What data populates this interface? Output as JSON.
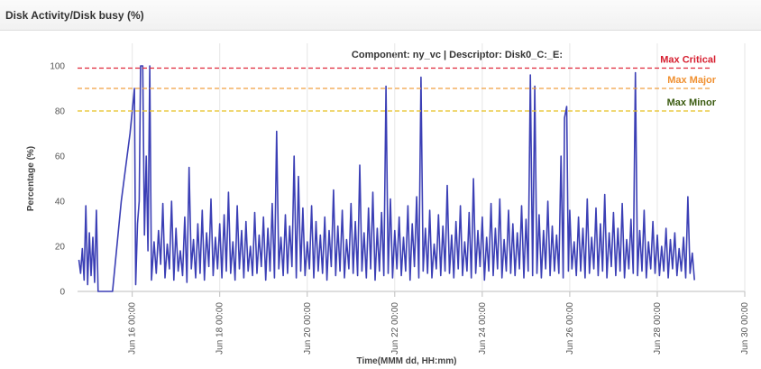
{
  "panel": {
    "title": "Disk Activity/Disk busy (%)"
  },
  "chart_data": {
    "type": "line",
    "title": "Component: ny_vc | Descriptor: Disk0_C:_E:",
    "xlabel": "Time(MMM dd, HH:mm)",
    "ylabel": "Percentage (%)",
    "ylim": [
      0,
      100
    ],
    "yticks": [
      0,
      20,
      40,
      60,
      80,
      100
    ],
    "xlim": [
      14.75,
      30.0
    ],
    "xticks": [
      {
        "value": 16,
        "label": "Jun 16 00:00"
      },
      {
        "value": 18,
        "label": "Jun 18 00:00"
      },
      {
        "value": 20,
        "label": "Jun 20 00:00"
      },
      {
        "value": 22,
        "label": "Jun 22 00:00"
      },
      {
        "value": 24,
        "label": "Jun 24 00:00"
      },
      {
        "value": 26,
        "label": "Jun 26 00:00"
      },
      {
        "value": 28,
        "label": "Jun 28 00:00"
      },
      {
        "value": 30,
        "label": "Jun 30 00:00"
      }
    ],
    "grid": true,
    "colors": {
      "series": "#3b3fb5",
      "grid": "#e6e6e6"
    },
    "thresholds": [
      {
        "name": "Max Critical",
        "value": 99,
        "color": "#e0263a",
        "label_color": "#d61d2e"
      },
      {
        "name": "Max Major",
        "value": 90,
        "color": "#f0a040",
        "label_color": "#f09030"
      },
      {
        "name": "Max Minor",
        "value": 80,
        "color": "#e8c020",
        "label_color": "#3a5a10"
      }
    ],
    "series": [
      {
        "color": "#3b3fb5",
        "points": [
          [
            14.78,
            14
          ],
          [
            14.82,
            8
          ],
          [
            14.86,
            19
          ],
          [
            14.9,
            5
          ],
          [
            14.94,
            38
          ],
          [
            14.98,
            3
          ],
          [
            15.02,
            26
          ],
          [
            15.06,
            7
          ],
          [
            15.1,
            24
          ],
          [
            15.14,
            4
          ],
          [
            15.18,
            36
          ],
          [
            15.22,
            0
          ],
          [
            15.55,
            0
          ],
          [
            15.75,
            40
          ],
          [
            15.95,
            70
          ],
          [
            16.05,
            90
          ],
          [
            16.08,
            3
          ],
          [
            16.12,
            30
          ],
          [
            16.16,
            40
          ],
          [
            16.19,
            100
          ],
          [
            16.24,
            100
          ],
          [
            16.28,
            25
          ],
          [
            16.32,
            60
          ],
          [
            16.36,
            18
          ],
          [
            16.4,
            100
          ],
          [
            16.44,
            5
          ],
          [
            16.5,
            22
          ],
          [
            16.55,
            8
          ],
          [
            16.6,
            27
          ],
          [
            16.65,
            12
          ],
          [
            16.7,
            39
          ],
          [
            16.75,
            6
          ],
          [
            16.8,
            21
          ],
          [
            16.85,
            10
          ],
          [
            16.9,
            40
          ],
          [
            16.95,
            5
          ],
          [
            17.0,
            28
          ],
          [
            17.05,
            9
          ],
          [
            17.1,
            18
          ],
          [
            17.15,
            7
          ],
          [
            17.2,
            33
          ],
          [
            17.25,
            4
          ],
          [
            17.3,
            55
          ],
          [
            17.35,
            10
          ],
          [
            17.4,
            23
          ],
          [
            17.45,
            6
          ],
          [
            17.5,
            30
          ],
          [
            17.55,
            8
          ],
          [
            17.6,
            36
          ],
          [
            17.65,
            5
          ],
          [
            17.7,
            26
          ],
          [
            17.75,
            11
          ],
          [
            17.8,
            41
          ],
          [
            17.85,
            7
          ],
          [
            17.9,
            24
          ],
          [
            17.95,
            10
          ],
          [
            18.0,
            30
          ],
          [
            18.05,
            6
          ],
          [
            18.1,
            34
          ],
          [
            18.15,
            9
          ],
          [
            18.2,
            44
          ],
          [
            18.25,
            8
          ],
          [
            18.3,
            22
          ],
          [
            18.35,
            5
          ],
          [
            18.4,
            38
          ],
          [
            18.45,
            10
          ],
          [
            18.5,
            27
          ],
          [
            18.55,
            6
          ],
          [
            18.6,
            31
          ],
          [
            18.65,
            9
          ],
          [
            18.7,
            20
          ],
          [
            18.75,
            7
          ],
          [
            18.8,
            35
          ],
          [
            18.85,
            8
          ],
          [
            18.9,
            25
          ],
          [
            18.95,
            11
          ],
          [
            19.0,
            33
          ],
          [
            19.05,
            5
          ],
          [
            19.1,
            28
          ],
          [
            19.15,
            9
          ],
          [
            19.2,
            39
          ],
          [
            19.25,
            6
          ],
          [
            19.3,
            71
          ],
          [
            19.35,
            10
          ],
          [
            19.4,
            24
          ],
          [
            19.45,
            7
          ],
          [
            19.5,
            34
          ],
          [
            19.55,
            8
          ],
          [
            19.6,
            29
          ],
          [
            19.65,
            11
          ],
          [
            19.7,
            60
          ],
          [
            19.75,
            6
          ],
          [
            19.8,
            51
          ],
          [
            19.85,
            9
          ],
          [
            19.9,
            37
          ],
          [
            19.95,
            7
          ],
          [
            20.0,
            22
          ],
          [
            20.05,
            10
          ],
          [
            20.1,
            38
          ],
          [
            20.15,
            6
          ],
          [
            20.2,
            31
          ],
          [
            20.25,
            9
          ],
          [
            20.3,
            25
          ],
          [
            20.35,
            8
          ],
          [
            20.4,
            33
          ],
          [
            20.45,
            5
          ],
          [
            20.5,
            27
          ],
          [
            20.55,
            11
          ],
          [
            20.6,
            45
          ],
          [
            20.65,
            7
          ],
          [
            20.7,
            29
          ],
          [
            20.75,
            9
          ],
          [
            20.8,
            36
          ],
          [
            20.85,
            6
          ],
          [
            20.9,
            23
          ],
          [
            20.95,
            10
          ],
          [
            21.0,
            39
          ],
          [
            21.05,
            8
          ],
          [
            21.1,
            31
          ],
          [
            21.15,
            7
          ],
          [
            21.2,
            56
          ],
          [
            21.25,
            9
          ],
          [
            21.3,
            26
          ],
          [
            21.35,
            6
          ],
          [
            21.4,
            37
          ],
          [
            21.45,
            10
          ],
          [
            21.5,
            44
          ],
          [
            21.55,
            5
          ],
          [
            21.6,
            28
          ],
          [
            21.65,
            9
          ],
          [
            21.7,
            35
          ],
          [
            21.75,
            7
          ],
          [
            21.8,
            91
          ],
          [
            21.85,
            8
          ],
          [
            21.9,
            41
          ],
          [
            21.95,
            6
          ],
          [
            22.0,
            27
          ],
          [
            22.05,
            10
          ],
          [
            22.1,
            33
          ],
          [
            22.15,
            7
          ],
          [
            22.2,
            24
          ],
          [
            22.25,
            9
          ],
          [
            22.3,
            38
          ],
          [
            22.35,
            5
          ],
          [
            22.4,
            30
          ],
          [
            22.45,
            11
          ],
          [
            22.5,
            42
          ],
          [
            22.55,
            6
          ],
          [
            22.6,
            95
          ],
          [
            22.65,
            9
          ],
          [
            22.7,
            28
          ],
          [
            22.75,
            8
          ],
          [
            22.8,
            36
          ],
          [
            22.85,
            6
          ],
          [
            22.9,
            21
          ],
          [
            22.95,
            10
          ],
          [
            23.0,
            34
          ],
          [
            23.05,
            7
          ],
          [
            23.1,
            29
          ],
          [
            23.15,
            9
          ],
          [
            23.2,
            47
          ],
          [
            23.25,
            8
          ],
          [
            23.3,
            25
          ],
          [
            23.35,
            6
          ],
          [
            23.4,
            31
          ],
          [
            23.45,
            10
          ],
          [
            23.5,
            38
          ],
          [
            23.55,
            7
          ],
          [
            23.6,
            22
          ],
          [
            23.65,
            9
          ],
          [
            23.7,
            35
          ],
          [
            23.75,
            6
          ],
          [
            23.8,
            50
          ],
          [
            23.85,
            8
          ],
          [
            23.9,
            27
          ],
          [
            23.95,
            11
          ],
          [
            24.0,
            33
          ],
          [
            24.05,
            5
          ],
          [
            24.1,
            24
          ],
          [
            24.15,
            9
          ],
          [
            24.2,
            39
          ],
          [
            24.25,
            7
          ],
          [
            24.3,
            28
          ],
          [
            24.35,
            10
          ],
          [
            24.4,
            41
          ],
          [
            24.45,
            6
          ],
          [
            24.5,
            23
          ],
          [
            24.55,
            9
          ],
          [
            24.6,
            36
          ],
          [
            24.65,
            8
          ],
          [
            24.7,
            30
          ],
          [
            24.75,
            7
          ],
          [
            24.8,
            26
          ],
          [
            24.85,
            10
          ],
          [
            24.9,
            38
          ],
          [
            24.95,
            6
          ],
          [
            25.0,
            32
          ],
          [
            25.05,
            9
          ],
          [
            25.1,
            96
          ],
          [
            25.15,
            7
          ],
          [
            25.2,
            91
          ],
          [
            25.25,
            8
          ],
          [
            25.3,
            34
          ],
          [
            25.35,
            6
          ],
          [
            25.4,
            27
          ],
          [
            25.45,
            10
          ],
          [
            25.5,
            40
          ],
          [
            25.55,
            7
          ],
          [
            25.6,
            29
          ],
          [
            25.65,
            9
          ],
          [
            25.7,
            25
          ],
          [
            25.75,
            8
          ],
          [
            25.8,
            60
          ],
          [
            25.85,
            6
          ],
          [
            25.88,
            77
          ],
          [
            25.93,
            82
          ],
          [
            25.97,
            9
          ],
          [
            26.0,
            36
          ],
          [
            26.05,
            10
          ],
          [
            26.1,
            22
          ],
          [
            26.15,
            7
          ],
          [
            26.2,
            33
          ],
          [
            26.25,
            9
          ],
          [
            26.3,
            28
          ],
          [
            26.35,
            6
          ],
          [
            26.4,
            41
          ],
          [
            26.45,
            8
          ],
          [
            26.5,
            24
          ],
          [
            26.55,
            10
          ],
          [
            26.6,
            37
          ],
          [
            26.65,
            7
          ],
          [
            26.7,
            30
          ],
          [
            26.75,
            9
          ],
          [
            26.8,
            43
          ],
          [
            26.85,
            6
          ],
          [
            26.9,
            26
          ],
          [
            26.95,
            11
          ],
          [
            27.0,
            35
          ],
          [
            27.05,
            7
          ],
          [
            27.1,
            28
          ],
          [
            27.15,
            9
          ],
          [
            27.2,
            39
          ],
          [
            27.25,
            6
          ],
          [
            27.3,
            23
          ],
          [
            27.35,
            10
          ],
          [
            27.4,
            32
          ],
          [
            27.45,
            8
          ],
          [
            27.5,
            97
          ],
          [
            27.55,
            7
          ],
          [
            27.6,
            27
          ],
          [
            27.65,
            9
          ],
          [
            27.7,
            36
          ],
          [
            27.75,
            6
          ],
          [
            27.8,
            22
          ],
          [
            27.85,
            10
          ],
          [
            27.9,
            31
          ],
          [
            27.95,
            8
          ],
          [
            28.0,
            25
          ],
          [
            28.05,
            7
          ],
          [
            28.1,
            20
          ],
          [
            28.15,
            9
          ],
          [
            28.2,
            28
          ],
          [
            28.25,
            6
          ],
          [
            28.3,
            23
          ],
          [
            28.35,
            10
          ],
          [
            28.4,
            26
          ],
          [
            28.45,
            7
          ],
          [
            28.5,
            19
          ],
          [
            28.55,
            9
          ],
          [
            28.6,
            24
          ],
          [
            28.65,
            6
          ],
          [
            28.7,
            42
          ],
          [
            28.75,
            8
          ],
          [
            28.8,
            17
          ],
          [
            28.85,
            5
          ]
        ]
      }
    ]
  }
}
